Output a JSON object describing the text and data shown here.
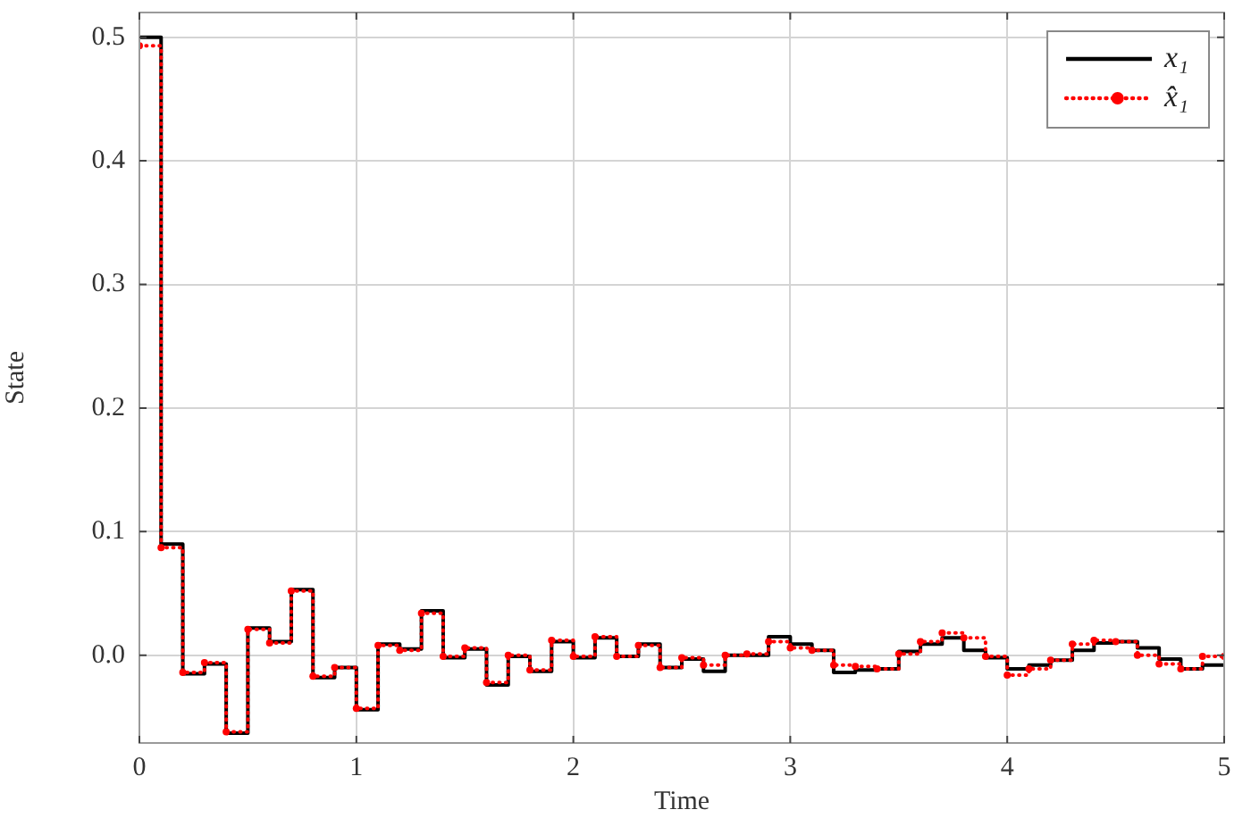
{
  "chart_data": {
    "type": "step",
    "xlabel": "Time",
    "ylabel": "State",
    "x": [
      0,
      0.1,
      0.2,
      0.3,
      0.4,
      0.5,
      0.6,
      0.7,
      0.8,
      0.9,
      1,
      1.1,
      1.2,
      1.3,
      1.4,
      1.5,
      1.6,
      1.7,
      1.8,
      1.9,
      2,
      2.1,
      2.2,
      2.3,
      2.4,
      2.5,
      2.6,
      2.7,
      2.8,
      2.9,
      3,
      3.1,
      3.2,
      3.3,
      3.4,
      3.5,
      3.6,
      3.7,
      3.8,
      3.9,
      4,
      4.1,
      4.2,
      4.3,
      4.4,
      4.5,
      4.6,
      4.7,
      4.8,
      4.9,
      5
    ],
    "series": [
      {
        "name": "x₁",
        "color": "#000000",
        "line_style": "solid",
        "marker": "none",
        "values": [
          0.5,
          0.09,
          -0.015,
          -0.007,
          -0.063,
          0.022,
          0.011,
          0.053,
          -0.018,
          -0.01,
          -0.044,
          0.009,
          0.005,
          0.036,
          -0.002,
          0.005,
          -0.024,
          -0.001,
          -0.013,
          0.011,
          -0.002,
          0.014,
          -0.001,
          0.009,
          -0.01,
          -0.003,
          -0.013,
          0,
          0,
          0.015,
          0.009,
          0.004,
          -0.014,
          -0.012,
          -0.011,
          0.003,
          0.009,
          0.014,
          0.004,
          -0.002,
          -0.011,
          -0.008,
          -0.004,
          0.004,
          0.01,
          0.011,
          0.006,
          -0.003,
          -0.011,
          -0.008,
          -0.008
        ]
      },
      {
        "name": "x̂₁",
        "color": "#ff0000",
        "line_style": "dotted",
        "marker": "circle",
        "values": [
          0.493,
          0.087,
          -0.014,
          -0.006,
          -0.062,
          0.021,
          0.01,
          0.052,
          -0.017,
          -0.01,
          -0.043,
          0.008,
          0.004,
          0.034,
          -0.001,
          0.006,
          -0.022,
          0,
          -0.012,
          0.012,
          -0.001,
          0.015,
          -0.001,
          0.008,
          -0.01,
          -0.002,
          -0.008,
          0,
          0.001,
          0.011,
          0.006,
          0.004,
          -0.008,
          -0.009,
          -0.011,
          0.001,
          0.011,
          0.018,
          0.014,
          -0.001,
          -0.016,
          -0.011,
          -0.004,
          0.009,
          0.012,
          0.011,
          0,
          -0.007,
          -0.011,
          -0.001,
          -0.001
        ]
      }
    ],
    "xlim": [
      0,
      5
    ],
    "xticks": [
      0,
      1,
      2,
      3,
      4,
      5
    ],
    "ylim": [
      -0.071,
      0.52
    ],
    "yticks": [
      {
        "value": 0,
        "label": "0.0"
      },
      0.1,
      0.2,
      0.3,
      0.4,
      0.5
    ],
    "grid": true,
    "legend": "top right"
  }
}
